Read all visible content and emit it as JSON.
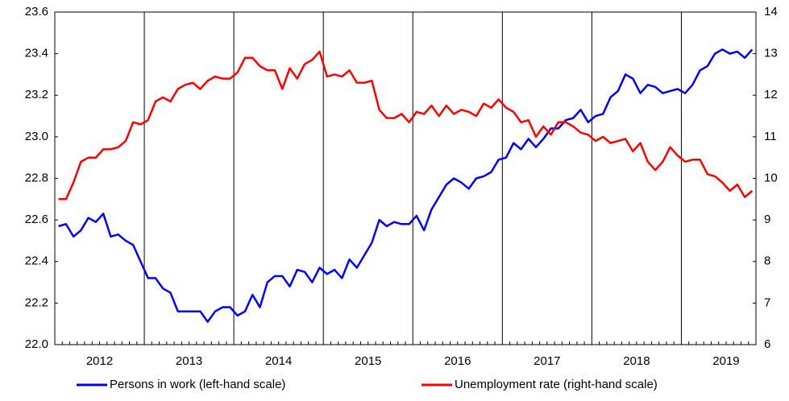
{
  "chart_data": {
    "type": "line",
    "categories": [
      null,
      null,
      null,
      null,
      null,
      null,
      "2012",
      null,
      null,
      null,
      null,
      null,
      null,
      null,
      null,
      null,
      null,
      null,
      "2013",
      null,
      null,
      null,
      null,
      null,
      null,
      null,
      null,
      null,
      null,
      null,
      "2014",
      null,
      null,
      null,
      null,
      null,
      null,
      null,
      null,
      null,
      null,
      null,
      "2015",
      null,
      null,
      null,
      null,
      null,
      null,
      null,
      null,
      null,
      null,
      null,
      "2016",
      null,
      null,
      null,
      null,
      null,
      null,
      null,
      null,
      null,
      null,
      null,
      "2017",
      null,
      null,
      null,
      null,
      null,
      null,
      null,
      null,
      null,
      null,
      null,
      "2018",
      null,
      null,
      null,
      null,
      null,
      null,
      null,
      null,
      null,
      null,
      null,
      "2019",
      null,
      null,
      null
    ],
    "series": [
      {
        "name": "Persons in work (left-hand scale)",
        "color": "#0000ff",
        "values": [
          22.57,
          22.58,
          22.52,
          22.55,
          22.61,
          22.59,
          22.63,
          22.52,
          22.53,
          22.5,
          22.48,
          22.4,
          22.32,
          22.32,
          22.27,
          22.25,
          22.16,
          22.16,
          22.16,
          22.16,
          22.11,
          22.16,
          22.18,
          22.18,
          22.14,
          22.16,
          22.24,
          22.18,
          22.3,
          22.33,
          22.33,
          22.28,
          22.36,
          22.35,
          22.3,
          22.37,
          22.34,
          22.36,
          22.32,
          22.41,
          22.37,
          22.43,
          22.49,
          22.6,
          22.57,
          22.59,
          22.58,
          22.58,
          22.62,
          22.55,
          22.65,
          22.71,
          22.77,
          22.8,
          22.78,
          22.75,
          22.8,
          22.81,
          22.83,
          22.89,
          22.9,
          22.97,
          22.94,
          22.99,
          22.95,
          22.99,
          23.04,
          23.04,
          23.08,
          23.09,
          23.13,
          23.07,
          23.1,
          23.11,
          23.19,
          23.22,
          23.3,
          23.28,
          23.21,
          23.25,
          23.24,
          23.21,
          23.22,
          23.23,
          23.21,
          23.25,
          23.32,
          23.34,
          23.4,
          23.42,
          23.4,
          23.41,
          23.38,
          23.42
        ]
      },
      {
        "name": "Unemployment rate (right-hand scale)",
        "color": "#ff0000",
        "axis": "y2",
        "values": [
          9.5,
          9.5,
          9.9,
          10.4,
          10.5,
          10.5,
          10.7,
          10.7,
          10.75,
          10.9,
          11.35,
          11.3,
          11.4,
          11.85,
          11.95,
          11.85,
          12.15,
          12.25,
          12.3,
          12.15,
          12.35,
          12.45,
          12.4,
          12.4,
          12.55,
          12.9,
          12.9,
          12.7,
          12.6,
          12.6,
          12.15,
          12.65,
          12.4,
          12.75,
          12.85,
          13.05,
          12.45,
          12.5,
          12.45,
          12.6,
          12.3,
          12.3,
          12.35,
          11.65,
          11.45,
          11.45,
          11.55,
          11.35,
          11.6,
          11.55,
          11.75,
          11.5,
          11.75,
          11.55,
          11.65,
          11.6,
          11.5,
          11.8,
          11.7,
          11.9,
          11.7,
          11.6,
          11.35,
          11.4,
          11.0,
          11.25,
          11.05,
          11.35,
          11.35,
          11.25,
          11.1,
          11.05,
          10.9,
          11.0,
          10.85,
          10.9,
          10.95,
          10.65,
          10.85,
          10.4,
          10.2,
          10.4,
          10.75,
          10.55,
          10.4,
          10.45,
          10.45,
          10.1,
          10.05,
          9.9,
          9.7,
          9.85,
          9.55,
          9.7
        ]
      }
    ],
    "ylim": [
      22,
      23.6
    ],
    "yticks": [
      {
        "value": 22,
        "label": "22.0"
      },
      22.2,
      22.4,
      22.6,
      22.8,
      {
        "value": 23,
        "label": "23.0"
      },
      23.2,
      23.4,
      23.6
    ],
    "y2lim": [
      6,
      14
    ],
    "y2ticks": [
      6,
      7,
      8,
      9,
      10,
      11,
      12,
      13,
      14
    ],
    "grid": true,
    "legend": "bottom"
  }
}
